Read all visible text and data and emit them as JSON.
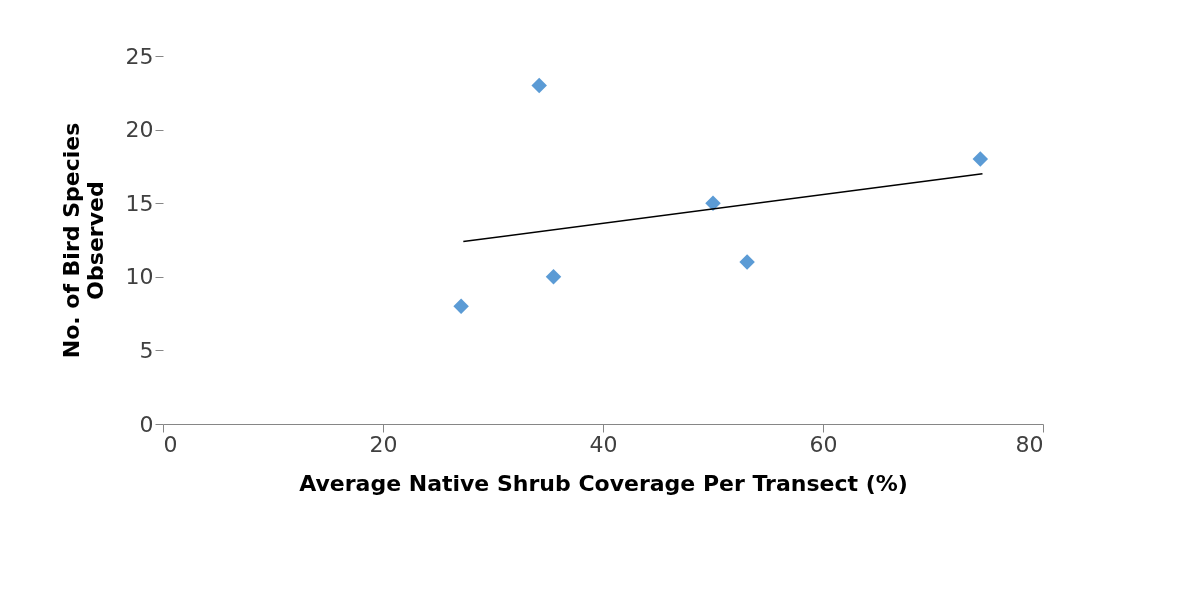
{
  "chart_data": {
    "type": "scatter",
    "xlabel": "Average Native Shrub Coverage Per Transect (%)",
    "ylabel": "No. of Bird Species Observed",
    "xlim": [
      0,
      80
    ],
    "xticks": [
      0,
      20,
      40,
      60,
      80
    ],
    "ylim": [
      0,
      25
    ],
    "yticks": [
      0,
      5,
      10,
      15,
      20,
      25
    ],
    "grid": false,
    "series": [
      {
        "color": "#5b9bd5",
        "marker": "diamond",
        "x": [
          27.1,
          34.2,
          35.5,
          50.0,
          53.1,
          74.3
        ],
        "values": [
          8,
          23,
          10,
          15,
          11,
          18
        ]
      },
      {
        "type": "line",
        "color": "#000000",
        "marker": "none",
        "x": [
          27.3,
          74.5
        ],
        "values": [
          12.4,
          17.0
        ]
      }
    ]
  }
}
